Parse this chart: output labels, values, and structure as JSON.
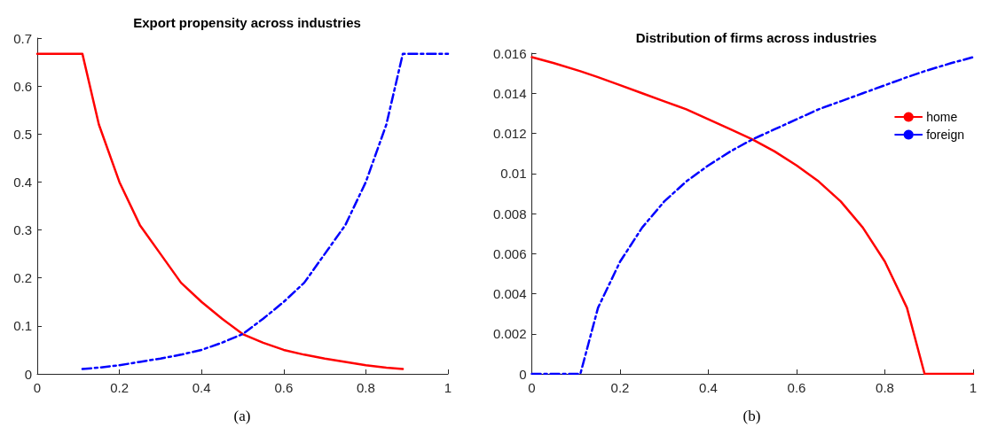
{
  "chart_data": [
    {
      "type": "line",
      "title": "Export propensity across industries",
      "annotations": [
        "(a)"
      ],
      "x": [
        0,
        0.05,
        0.11,
        0.15,
        0.2,
        0.25,
        0.3,
        0.35,
        0.4,
        0.45,
        0.5,
        0.55,
        0.6,
        0.65,
        0.7,
        0.75,
        0.8,
        0.85,
        0.89,
        0.95,
        1
      ],
      "series": [
        {
          "color": "#ff0000",
          "line_style": "solid",
          "values": [
            0.667,
            0.667,
            0.667,
            0.52,
            0.4,
            0.31,
            0.25,
            0.19,
            0.15,
            0.115,
            0.083,
            0.065,
            0.05,
            0.04,
            0.032,
            0.025,
            0.018,
            0.013,
            0.01,
            null,
            null
          ]
        },
        {
          "color": "#0000ff",
          "line_style": "dashed",
          "values": [
            null,
            null,
            0.01,
            0.013,
            0.018,
            0.025,
            0.032,
            0.04,
            0.05,
            0.065,
            0.083,
            0.115,
            0.15,
            0.19,
            0.25,
            0.31,
            0.4,
            0.52,
            0.667,
            0.667,
            0.667
          ]
        }
      ],
      "xlim": [
        0,
        1
      ],
      "xticks": [
        0,
        0.2,
        0.4,
        0.6,
        0.8,
        1
      ],
      "ylim": [
        0,
        0.7
      ],
      "yticks": [
        0,
        0.1,
        0.2,
        0.3,
        0.4,
        0.5,
        0.6,
        0.7
      ],
      "grid": false,
      "legend": false,
      "marker": "none"
    },
    {
      "type": "line",
      "title": "Distribution of firms across industries",
      "annotations": [
        "(b)"
      ],
      "x": [
        0,
        0.05,
        0.11,
        0.15,
        0.2,
        0.25,
        0.3,
        0.35,
        0.4,
        0.45,
        0.5,
        0.55,
        0.6,
        0.65,
        0.7,
        0.75,
        0.8,
        0.85,
        0.89,
        0.95,
        1
      ],
      "series": [
        {
          "name": "home",
          "color": "#ff0000",
          "line_style": "solid",
          "values": [
            0.0158,
            0.0155,
            0.0151,
            0.0148,
            0.0144,
            0.014,
            0.0136,
            0.0132,
            0.0127,
            0.0122,
            0.0117,
            0.0111,
            0.0104,
            0.0096,
            0.0086,
            0.0073,
            0.0056,
            0.0033,
            0,
            0,
            0
          ]
        },
        {
          "name": "foreign",
          "color": "#0000ff",
          "line_style": "dashed",
          "values": [
            0,
            0,
            0,
            0.0033,
            0.0056,
            0.0073,
            0.0086,
            0.0096,
            0.0104,
            0.0111,
            0.0117,
            0.0122,
            0.0127,
            0.0132,
            0.0136,
            0.014,
            0.0144,
            0.0148,
            0.0151,
            0.0155,
            0.0158
          ]
        }
      ],
      "xlim": [
        0,
        1
      ],
      "xticks": [
        0,
        0.2,
        0.4,
        0.6,
        0.8,
        1
      ],
      "ylim": [
        0,
        0.016
      ],
      "yticks": [
        0,
        0.002,
        0.004,
        0.006,
        0.008,
        0.01,
        0.012,
        0.014,
        0.016
      ],
      "grid": false,
      "legend": "top right",
      "marker": "none"
    }
  ]
}
